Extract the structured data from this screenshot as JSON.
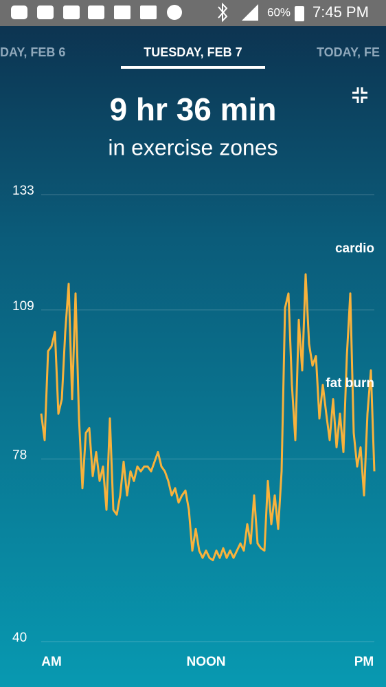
{
  "status_bar": {
    "battery": "60%",
    "time": "7:45 PM"
  },
  "tabs": [
    "DAY, FEB 6",
    "TUESDAY, FEB 7",
    "TODAY, FE"
  ],
  "summary": {
    "duration": "9 hr 36 min",
    "caption": "in exercise zones"
  },
  "chart_data": {
    "type": "line",
    "categories": [
      null,
      null,
      null,
      "AM",
      null,
      null,
      null,
      null,
      null,
      null,
      null,
      null,
      null,
      null,
      null,
      null,
      null,
      null,
      null,
      null,
      null,
      null,
      null,
      null,
      null,
      null,
      null,
      null,
      null,
      null,
      null,
      null,
      null,
      null,
      null,
      null,
      null,
      null,
      null,
      null,
      null,
      null,
      null,
      null,
      null,
      null,
      null,
      null,
      "NOON",
      null,
      null,
      null,
      null,
      null,
      null,
      null,
      null,
      null,
      null,
      null,
      null,
      null,
      null,
      null,
      null,
      null,
      null,
      null,
      null,
      null,
      null,
      null,
      null,
      null,
      null,
      null,
      null,
      null,
      null,
      null,
      null,
      null,
      null,
      null,
      null,
      null,
      null,
      null,
      null,
      null,
      null,
      null,
      null,
      null,
      "PM",
      null,
      null,
      null
    ],
    "values": [
      87,
      81.5,
      100,
      101,
      104,
      87,
      90,
      104,
      114,
      90,
      112,
      86,
      71.5,
      83,
      84,
      74,
      79,
      73,
      76,
      67,
      86,
      67,
      66,
      70,
      77,
      70,
      75,
      73,
      76,
      75,
      76,
      76,
      75,
      77,
      79,
      76,
      75,
      73,
      70,
      71.5,
      68.5,
      70,
      71,
      67,
      58.5,
      63,
      58.5,
      57,
      58.5,
      57,
      56.5,
      58.5,
      57,
      59,
      57,
      58.5,
      57,
      58.5,
      60,
      58.5,
      64,
      60,
      70,
      60,
      59,
      58.5,
      73,
      64,
      70,
      63,
      75,
      109,
      112,
      93,
      81.5,
      106.5,
      96,
      116,
      101.5,
      97,
      99,
      86,
      93,
      87,
      81.5,
      90,
      80,
      87,
      79,
      99,
      112,
      83,
      76,
      80,
      70,
      87,
      96,
      75
    ],
    "color": "#f8b23c",
    "ylim": [
      40,
      133
    ],
    "yticks": [
      40,
      78,
      109,
      133
    ],
    "grid": true,
    "annotations": [
      "cardio",
      "fat burn"
    ]
  }
}
